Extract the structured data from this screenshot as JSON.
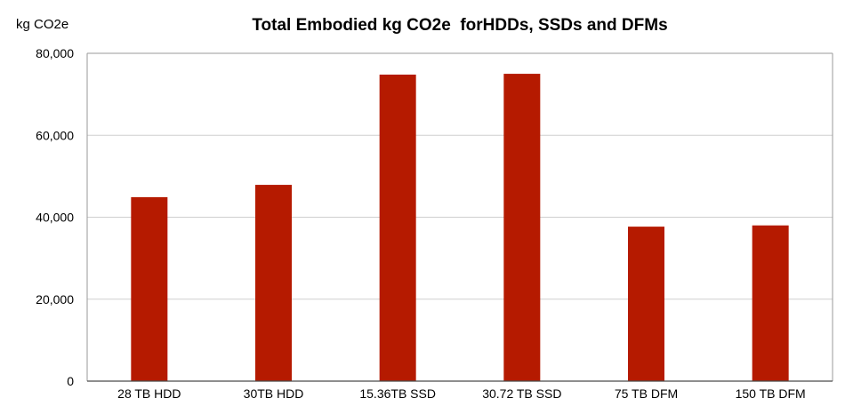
{
  "chart_data": {
    "type": "bar",
    "title": "Total Embodied kg CO2e  forHDDs, SSDs and DFMs",
    "ylabel": "kg CO2e",
    "xlabel": "",
    "categories": [
      "28 TB HDD",
      "30TB HDD",
      "15.36TB SSD",
      "30.72 TB SSD",
      "75 TB DFM",
      "150 TB DFM"
    ],
    "values": [
      44900,
      47900,
      74800,
      75000,
      37700,
      38000
    ],
    "ylim": [
      0,
      80000
    ],
    "yticks": [
      0,
      20000,
      40000,
      60000,
      80000
    ],
    "ytick_labels": [
      "0",
      "20,000",
      "40,000",
      "60,000",
      "80,000"
    ],
    "grid": true,
    "legend": "none",
    "colors": {
      "bar": "#b51a00",
      "grid": "#cfcfcf",
      "axis": "#9a9a9a"
    }
  }
}
